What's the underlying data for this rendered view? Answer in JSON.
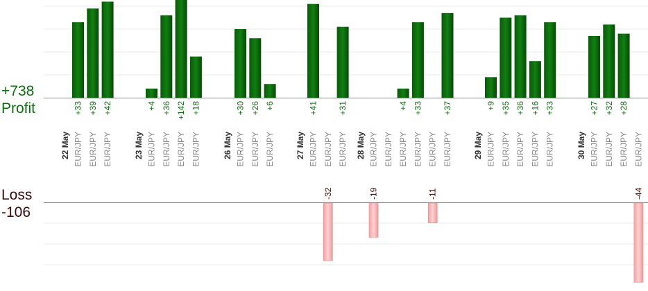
{
  "summary": {
    "profit_total": "+738",
    "profit_label": "Profit",
    "loss_label": "Loss",
    "loss_total": "-106"
  },
  "colors": {
    "profit_bar": "#0d6e0d",
    "profit_bar_dark": "#064a06",
    "profit_text": "#0d6e0d",
    "loss_bar": "#f8b4b4",
    "loss_bar_edge": "#e38a8a",
    "loss_text": "#3a0a0a",
    "grid": "#e8e8e8",
    "axis": "#888888",
    "pair_text": "#888888",
    "date_text": "#333333"
  },
  "chart_data": [
    {
      "type": "bar",
      "name": "profit",
      "dates": [
        "22 May",
        "23 May",
        "26 May",
        "27 May",
        "28 May",
        "29 May",
        "30 May"
      ],
      "groups": [
        {
          "date": "22 May",
          "trades": [
            {
              "pair": "EUR/JPY",
              "value": 33
            },
            {
              "pair": "EUR/JPY",
              "value": 39
            },
            {
              "pair": "EUR/JPY",
              "value": 42
            }
          ]
        },
        {
          "date": "23 May",
          "trades": [
            {
              "pair": "EUR/JPY",
              "value": 4
            },
            {
              "pair": "EUR/JPY",
              "value": 36
            },
            {
              "pair": "EUR/JPY",
              "value": 142
            },
            {
              "pair": "EUR/JPY",
              "value": 18
            }
          ]
        },
        {
          "date": "26 May",
          "trades": [
            {
              "pair": "EUR/JPY",
              "value": 30
            },
            {
              "pair": "EUR/JPY",
              "value": 26
            },
            {
              "pair": "EUR/JPY",
              "value": 6
            }
          ]
        },
        {
          "date": "27 May",
          "trades": [
            {
              "pair": "EUR/JPY",
              "value": 41
            },
            {
              "pair": "EUR/JPY",
              "value": 0
            },
            {
              "pair": "EUR/JPY",
              "value": 31
            }
          ]
        },
        {
          "date": "28 May",
          "trades": [
            {
              "pair": "EUR/JPY",
              "value": 0
            },
            {
              "pair": "EUR/JPY",
              "value": 0
            },
            {
              "pair": "EUR/JPY",
              "value": 4
            },
            {
              "pair": "EUR/JPY",
              "value": 33
            },
            {
              "pair": "EUR/JPY",
              "value": 0
            },
            {
              "pair": "EUR/JPY",
              "value": 37
            }
          ]
        },
        {
          "date": "29 May",
          "trades": [
            {
              "pair": "EUR/JPY",
              "value": 9
            },
            {
              "pair": "EUR/JPY",
              "value": 35
            },
            {
              "pair": "EUR/JPY",
              "value": 36
            },
            {
              "pair": "EUR/JPY",
              "value": 16
            },
            {
              "pair": "EUR/JPY",
              "value": 33
            }
          ]
        },
        {
          "date": "30 May",
          "trades": [
            {
              "pair": "EUR/JPY",
              "value": 27
            },
            {
              "pair": "EUR/JPY",
              "value": 32
            },
            {
              "pair": "EUR/JPY",
              "value": 28
            },
            {
              "pair": "EUR/JPY",
              "value": 0
            }
          ]
        }
      ],
      "value_labels": [
        [
          "+33",
          "+39",
          "+42"
        ],
        [
          "+4",
          "+36",
          "+142",
          "+18"
        ],
        [
          "+30",
          "+26",
          "+6"
        ],
        [
          "+41",
          "",
          "+31"
        ],
        [
          "",
          "",
          "+4",
          "+33",
          "",
          "+37"
        ],
        [
          "+9",
          "+35",
          "+36",
          "+16",
          "+33"
        ],
        [
          "+27",
          "+32",
          "+28",
          ""
        ]
      ],
      "ylim": [
        0,
        40
      ],
      "grid": true
    },
    {
      "type": "bar",
      "name": "loss",
      "groups": [
        {
          "date": "27 May",
          "trades": [
            {
              "index": 1,
              "value": -32
            }
          ]
        },
        {
          "date": "28 May",
          "trades": [
            {
              "index": 0,
              "value": -19
            },
            {
              "index": 1,
              "value": 0
            },
            {
              "index": 4,
              "value": -11
            }
          ]
        },
        {
          "date": "30 May",
          "trades": [
            {
              "index": 3,
              "value": -44
            }
          ]
        }
      ],
      "value_labels": [
        "-32",
        "-19",
        "-11",
        "-44"
      ],
      "ylim": [
        -40,
        0
      ],
      "grid": true
    }
  ]
}
